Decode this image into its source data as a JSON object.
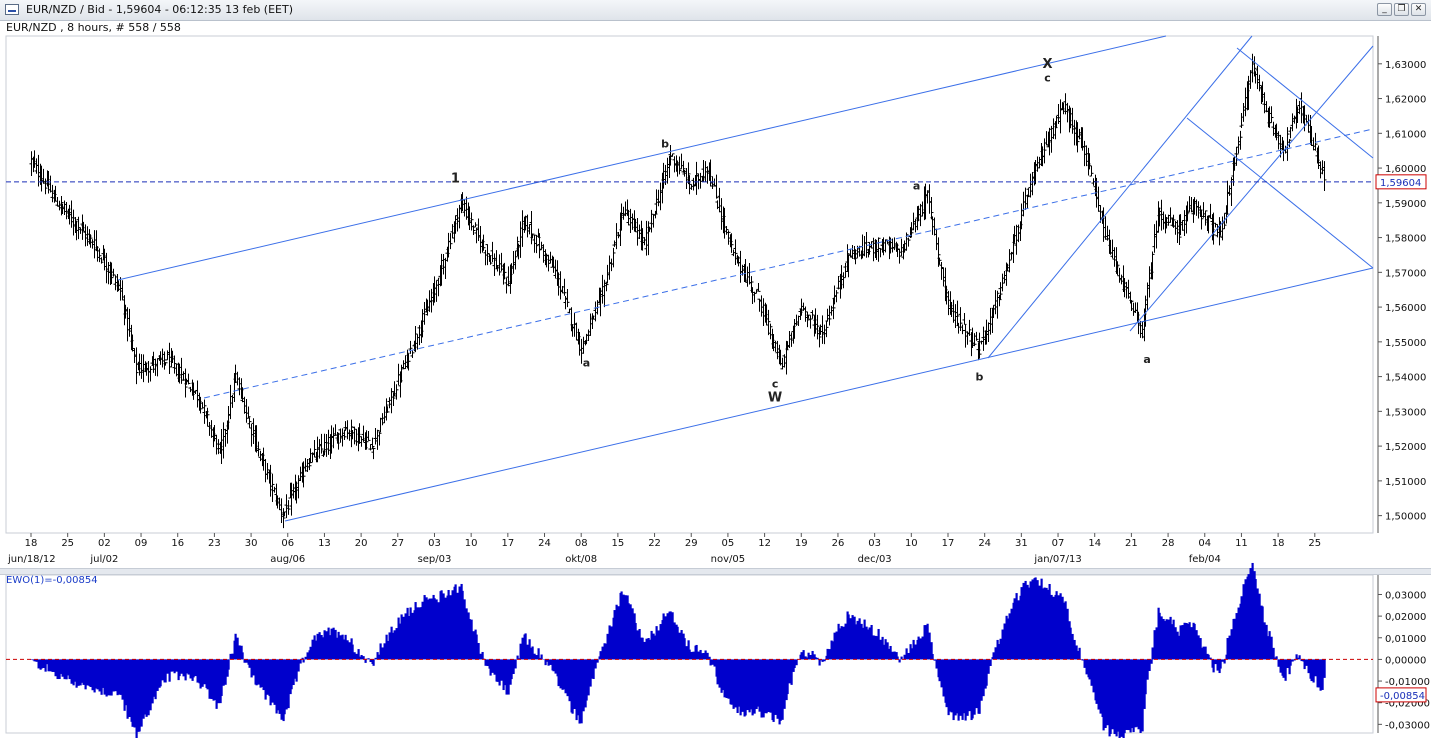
{
  "window": {
    "title": "EUR/NZD / Bid - 1,59604 - 06:12:35  13 feb (EET)",
    "subtitle": "EUR/NZD , 8 hours, # 558 / 558",
    "buttons": [
      "_",
      "❐",
      "✕"
    ]
  },
  "chart_data": [
    {
      "type": "ohlc",
      "symbol": "EUR/NZD",
      "timeframe": "8 hours",
      "current_price": "1,59604",
      "ylim": [
        1.495,
        1.638
      ],
      "y_ticks": [
        "1,50000",
        "1,51000",
        "1,52000",
        "1,53000",
        "1,54000",
        "1,55000",
        "1,56000",
        "1,57000",
        "1,58000",
        "1,59000",
        "1,60000",
        "1,61000",
        "1,62000",
        "1,63000"
      ],
      "x_ticks": [
        "18",
        "25",
        "02",
        "09",
        "16",
        "23",
        "30",
        "06",
        "13",
        "20",
        "27",
        "03",
        "10",
        "17",
        "24",
        "08",
        "15",
        "22",
        "29",
        "05",
        "12",
        "19",
        "26",
        "03",
        "10",
        "17",
        "24",
        "31",
        "07",
        "14",
        "21",
        "28",
        "04",
        "11",
        "18",
        "25"
      ],
      "x_date_labels": [
        "jun/18/12",
        "jul/02",
        "aug/06",
        "sep/03",
        "okt/08",
        "nov/05",
        "dec/03",
        "jan/07/13",
        "feb/04"
      ],
      "series_anchor_points": [
        {
          "date": "2012-06-18",
          "price": 1.602
        },
        {
          "date": "2012-06-23",
          "price": 1.59
        },
        {
          "date": "2012-06-30",
          "price": 1.578
        },
        {
          "date": "2012-07-05",
          "price": 1.565
        },
        {
          "date": "2012-07-08",
          "price": 1.542
        },
        {
          "date": "2012-07-14",
          "price": 1.545
        },
        {
          "date": "2012-07-20",
          "price": 1.534
        },
        {
          "date": "2012-07-24",
          "price": 1.518
        },
        {
          "date": "2012-07-27",
          "price": 1.54
        },
        {
          "date": "2012-07-31",
          "price": 1.52
        },
        {
          "date": "2012-08-05",
          "price": 1.5
        },
        {
          "date": "2012-08-10",
          "price": 1.516
        },
        {
          "date": "2012-08-17",
          "price": 1.525
        },
        {
          "date": "2012-08-22",
          "price": 1.52
        },
        {
          "date": "2012-08-30",
          "price": 1.55
        },
        {
          "date": "2012-09-03",
          "price": 1.565
        },
        {
          "date": "2012-09-08",
          "price": 1.59
        },
        {
          "date": "2012-09-12",
          "price": 1.578
        },
        {
          "date": "2012-09-17",
          "price": 1.567
        },
        {
          "date": "2012-09-20",
          "price": 1.585
        },
        {
          "date": "2012-09-26",
          "price": 1.57
        },
        {
          "date": "2012-10-01",
          "price": 1.548
        },
        {
          "date": "2012-10-05",
          "price": 1.564
        },
        {
          "date": "2012-10-09",
          "price": 1.588
        },
        {
          "date": "2012-10-13",
          "price": 1.578
        },
        {
          "date": "2012-10-18",
          "price": 1.604
        },
        {
          "date": "2012-10-22",
          "price": 1.595
        },
        {
          "date": "2012-10-25",
          "price": 1.6
        },
        {
          "date": "2012-10-30",
          "price": 1.575
        },
        {
          "date": "2012-11-04",
          "price": 1.562
        },
        {
          "date": "2012-11-08",
          "price": 1.543
        },
        {
          "date": "2012-11-12",
          "price": 1.56
        },
        {
          "date": "2012-11-16",
          "price": 1.552
        },
        {
          "date": "2012-11-21",
          "price": 1.575
        },
        {
          "date": "2012-11-27",
          "price": 1.578
        },
        {
          "date": "2012-12-01",
          "price": 1.576
        },
        {
          "date": "2012-12-06",
          "price": 1.592
        },
        {
          "date": "2012-12-10",
          "price": 1.56
        },
        {
          "date": "2012-12-16",
          "price": 1.548
        },
        {
          "date": "2012-12-20",
          "price": 1.565
        },
        {
          "date": "2012-12-25",
          "price": 1.592
        },
        {
          "date": "2012-12-28",
          "price": 1.605
        },
        {
          "date": "2013-01-01",
          "price": 1.618
        },
        {
          "date": "2013-01-05",
          "price": 1.605
        },
        {
          "date": "2013-01-09",
          "price": 1.58
        },
        {
          "date": "2013-01-14",
          "price": 1.56
        },
        {
          "date": "2013-01-16",
          "price": 1.553
        },
        {
          "date": "2013-01-19",
          "price": 1.587
        },
        {
          "date": "2013-01-23",
          "price": 1.582
        },
        {
          "date": "2013-01-26",
          "price": 1.59
        },
        {
          "date": "2013-01-31",
          "price": 1.58
        },
        {
          "date": "2013-02-03",
          "price": 1.605
        },
        {
          "date": "2013-02-06",
          "price": 1.63
        },
        {
          "date": "2013-02-09",
          "price": 1.615
        },
        {
          "date": "2013-02-12",
          "price": 1.605
        },
        {
          "date": "2013-02-15",
          "price": 1.618
        },
        {
          "date": "2013-02-18",
          "price": 1.605
        },
        {
          "date": "2013-02-20",
          "price": 1.596
        }
      ],
      "wave_labels": [
        {
          "text": "1",
          "date": "2012-09-07",
          "price": 1.597
        },
        {
          "text": "a",
          "date": "2012-10-02",
          "price": 1.544
        },
        {
          "text": "b",
          "date": "2012-10-17",
          "price": 1.607
        },
        {
          "text": "c",
          "date": "2012-11-07",
          "price": 1.538
        },
        {
          "text": "W",
          "date": "2012-11-07",
          "price": 1.534
        },
        {
          "text": "a",
          "date": "2012-12-04",
          "price": 1.595
        },
        {
          "text": "b",
          "date": "2012-12-16",
          "price": 1.54
        },
        {
          "text": "X",
          "date": "2012-12-29",
          "price": 1.63
        },
        {
          "text": "c",
          "date": "2012-12-29",
          "price": 1.626
        },
        {
          "text": "a",
          "date": "2013-01-17",
          "price": 1.545
        }
      ],
      "horizontal_line": {
        "price": 1.59604,
        "style": "dashed"
      }
    },
    {
      "type": "histogram",
      "indicator": "EWO(1)",
      "label": "EWO(1)=-0,00854",
      "current_value": "-0,00854",
      "ylim": [
        -0.034,
        0.039
      ],
      "y_ticks": [
        "0,03000",
        "0,02000",
        "0,01000",
        "0,00000",
        "-0,01000",
        "-0,02000",
        "-0,03000"
      ],
      "zero_line": {
        "value": 0,
        "style": "dashed",
        "color": "#cc0000"
      }
    }
  ],
  "colors": {
    "bars": "#000000",
    "lines": "#3b6fe8",
    "histogram": "#0000cc",
    "label_box": "#cc0000"
  }
}
